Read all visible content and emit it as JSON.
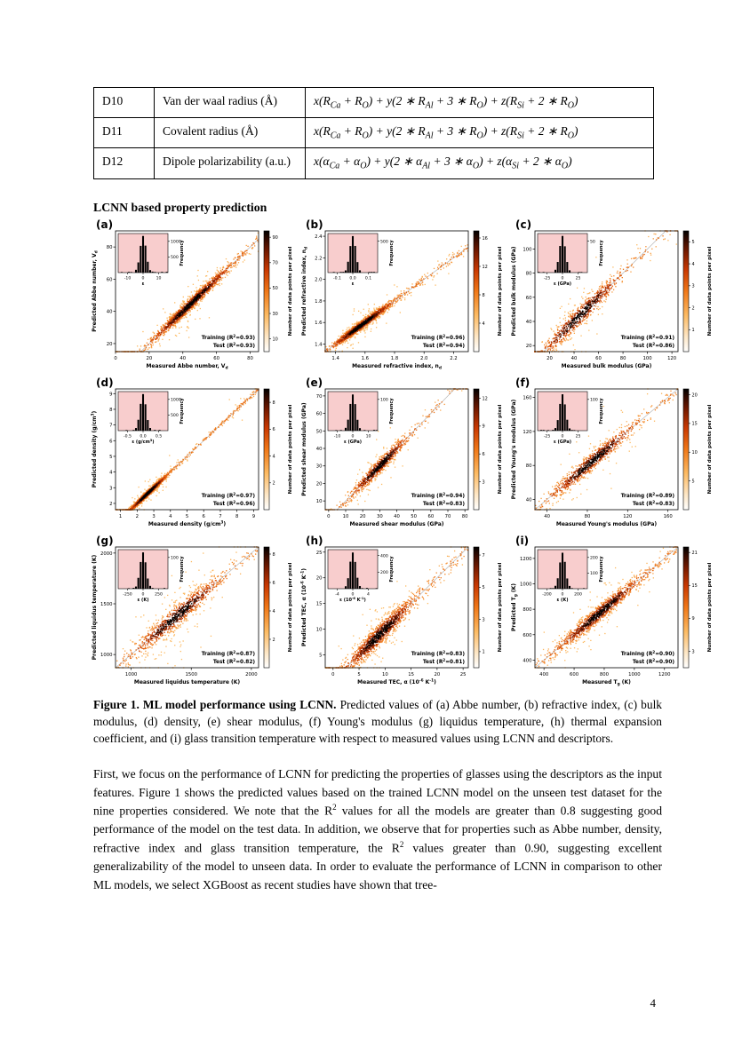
{
  "section_heading": "LCNN based property prediction",
  "table": {
    "rows": [
      {
        "id": "D10",
        "name": "Van der waal radius (Å)",
        "formula": "x(R_{Ca} + R_{O}) + y(2 ∗ R_{Al} + 3 ∗ R_{O}) + z(R_{Si} + 2 ∗ R_{O})"
      },
      {
        "id": "D11",
        "name": "Covalent radius (Å)",
        "formula": "x(R_{Ca} + R_{O}) + y(2 ∗ R_{Al} + 3 ∗ R_{O}) + z(R_{Si} + 2 ∗ R_{O})"
      },
      {
        "id": "D12",
        "name": "Dipole polarizability (a.u.)",
        "formula": "x(α_{Ca} + α_{O}) + y(2 ∗ α_{Al} + 3 ∗ α_{O}) + z(α_{Si} + 2 ∗ α_{O})"
      }
    ]
  },
  "colorbar_label": "Number of data points per pixel",
  "inset_ylabel": "Frequency",
  "chart_data": [
    {
      "panel": "(a)",
      "type": "scatter",
      "xlabel": "Measured Abbe number, V_{d}",
      "ylabel": "Predicted Abbe number, V_{d}",
      "xlim": [
        0,
        85
      ],
      "ylim": [
        15,
        90
      ],
      "xticks": [
        "0",
        "20",
        "40",
        "60",
        "80"
      ],
      "yticks": [
        "20",
        "40",
        "60",
        "80"
      ],
      "train_label": "Training (R^{2}=0.93)",
      "test_label": "Test (R^{2}=0.93)",
      "inset": {
        "xlabel": "ε",
        "xticks": [
          "-10",
          "0",
          "10"
        ],
        "yticks": [
          "500",
          "1000"
        ],
        "ymax": 1250
      },
      "cbar_ticks": [
        "10",
        "30",
        "50",
        "70",
        "90"
      ],
      "cbar_max": 95,
      "gen": {
        "center": 45,
        "width": 11,
        "noise": 2.0,
        "n": 1500
      }
    },
    {
      "panel": "(b)",
      "type": "scatter",
      "xlabel": "Measured refractive index, n_{d}",
      "ylabel": "Predicted refractive index, n_{d}",
      "xlim": [
        1.33,
        2.3
      ],
      "ylim": [
        1.33,
        2.45
      ],
      "xticks": [
        "1.4",
        "1.6",
        "1.8",
        "2.0",
        "2.2"
      ],
      "yticks": [
        "1.4",
        "1.6",
        "1.8",
        "2.0",
        "2.2",
        "2.4"
      ],
      "train_label": "Training (R^{2}=0.96)",
      "test_label": "Test (R^{2}=0.94)",
      "inset": {
        "xlabel": "ε",
        "xticks": [
          "-0.1",
          "0.0",
          "0.1"
        ],
        "yticks": [
          "500"
        ],
        "ymax": 620
      },
      "cbar_ticks": [
        "4",
        "8",
        "12",
        "16"
      ],
      "cbar_max": 17,
      "gen": {
        "center": 1.58,
        "width": 0.1,
        "noise": 0.022,
        "n": 1500
      }
    },
    {
      "panel": "(c)",
      "type": "scatter",
      "xlabel": "Measured bulk modulus (GPa)",
      "ylabel": "Predicted bulk modulus (GPa)",
      "xlim": [
        8,
        125
      ],
      "ylim": [
        15,
        115
      ],
      "xticks": [
        "20",
        "40",
        "60",
        "80",
        "100",
        "120"
      ],
      "yticks": [
        "20",
        "40",
        "60",
        "80",
        "100"
      ],
      "train_label": "Training (R^{2}=0.91)",
      "test_label": "Test (R^{2}=0.86)",
      "inset": {
        "xlabel": "ε (GPa)",
        "xticks": [
          "-25",
          "0",
          "25"
        ],
        "yticks": [
          "50"
        ],
        "ymax": 62
      },
      "cbar_ticks": [
        "1",
        "2",
        "3",
        "4",
        "5"
      ],
      "cbar_max": 5.5,
      "gen": {
        "center": 45,
        "width": 16,
        "noise": 4.5,
        "n": 900
      }
    },
    {
      "panel": "(d)",
      "type": "scatter",
      "xlabel": "Measured density (g/cm^{3})",
      "ylabel": "Predicted density (g/cm^{3})",
      "xlim": [
        0.7,
        9.3
      ],
      "ylim": [
        1.6,
        9.3
      ],
      "xticks": [
        "1",
        "2",
        "3",
        "4",
        "5",
        "6",
        "7",
        "8",
        "9"
      ],
      "yticks": [
        "2",
        "3",
        "4",
        "5",
        "6",
        "7",
        "8",
        "9"
      ],
      "train_label": "Training (R^{2}=0.97)",
      "test_label": "Test (R^{2}=0.96)",
      "inset": {
        "xlabel": "ε (g/cm^{3})",
        "xticks": [
          "-0.5",
          "0.0",
          "0.5"
        ],
        "yticks": [
          "500",
          "1000"
        ],
        "ymax": 1250
      },
      "cbar_ticks": [
        "2",
        "4",
        "6",
        "8"
      ],
      "cbar_max": 9,
      "gen": {
        "center": 2.65,
        "width": 0.55,
        "noise": 0.1,
        "n": 1600
      }
    },
    {
      "panel": "(e)",
      "type": "scatter",
      "xlabel": "Measured shear modulus (GPa)",
      "ylabel": "Predicted shear modulus (GPa)",
      "xlim": [
        -2,
        82
      ],
      "ylim": [
        5,
        74
      ],
      "xticks": [
        "0",
        "10",
        "20",
        "30",
        "40",
        "50",
        "60",
        "70",
        "80"
      ],
      "yticks": [
        "10",
        "20",
        "30",
        "40",
        "50",
        "60",
        "70"
      ],
      "train_label": "Training (R^{2}=0.94)",
      "test_label": "Test (R^{2}=0.83)",
      "inset": {
        "xlabel": "ε (GPa)",
        "xticks": [
          "-10",
          "0",
          "10"
        ],
        "yticks": [
          "100"
        ],
        "ymax": 125
      },
      "cbar_ticks": [
        "3",
        "6",
        "9",
        "12"
      ],
      "cbar_max": 13,
      "gen": {
        "center": 30,
        "width": 8,
        "noise": 2.2,
        "n": 900
      }
    },
    {
      "panel": "(f)",
      "type": "scatter",
      "xlabel": "Measured Young's modulus (GPa)",
      "ylabel": "Predicted Young's modulus (GPa)",
      "xlim": [
        28,
        170
      ],
      "ylim": [
        28,
        170
      ],
      "xticks": [
        "40",
        "80",
        "120",
        "160"
      ],
      "yticks": [
        "40",
        "80",
        "120",
        "160"
      ],
      "train_label": "Training (R^{2}=0.89)",
      "test_label": "Test (R^{2}=0.83)",
      "inset": {
        "xlabel": "ε (GPa)",
        "xticks": [
          "-25",
          "0",
          "25"
        ],
        "yticks": [
          "100"
        ],
        "ymax": 125
      },
      "cbar_ticks": [
        "5",
        "10",
        "15",
        "20"
      ],
      "cbar_max": 21,
      "gen": {
        "center": 85,
        "width": 20,
        "noise": 5.5,
        "n": 1000
      }
    },
    {
      "panel": "(g)",
      "type": "scatter",
      "xlabel": "Measured liquidus temperature (K)",
      "ylabel": "Predicted liquidus temperature (K)",
      "xlim": [
        870,
        2060
      ],
      "ylim": [
        870,
        2060
      ],
      "xticks": [
        "1000",
        "1500",
        "2000"
      ],
      "yticks": [
        "1000",
        "1500",
        "2000"
      ],
      "train_label": "Training (R^{2}=0.87)",
      "test_label": "Test (R^{2}=0.82)",
      "inset": {
        "xlabel": "ε (K)",
        "xticks": [
          "-250",
          "0",
          "250"
        ],
        "yticks": [
          "100"
        ],
        "ymax": 125
      },
      "cbar_ticks": [
        "2",
        "4",
        "6",
        "8"
      ],
      "cbar_max": 8.5,
      "gen": {
        "center": 1380,
        "width": 170,
        "noise": 55,
        "n": 1100,
        "out": 0.13
      }
    },
    {
      "panel": "(h)",
      "type": "scatter",
      "xlabel": "Measured TEC, α (10^{-6} K^{-1})",
      "ylabel": "Predicted TEC, α (10^{-6} K^{-1})",
      "xlim": [
        -1.5,
        26
      ],
      "ylim": [
        2.5,
        26
      ],
      "xticks": [
        "0",
        "5",
        "10",
        "15",
        "20",
        "25"
      ],
      "yticks": [
        "5",
        "10",
        "15",
        "20",
        "25"
      ],
      "train_label": "Training (R^{2}=0.83)",
      "test_label": "Test (R^{2}=0.81)",
      "inset": {
        "xlabel": "ε (10^{-6} K^{-1})",
        "xticks": [
          "-4",
          "0",
          "4"
        ],
        "yticks": [
          "200",
          "400"
        ],
        "ymax": 470
      },
      "cbar_ticks": [
        "1",
        "3",
        "5",
        "7"
      ],
      "cbar_max": 7.5,
      "gen": {
        "center": 9,
        "width": 3,
        "noise": 1.1,
        "n": 1400
      }
    },
    {
      "panel": "(i)",
      "type": "scatter",
      "xlabel": "Measured T_{g} (K)",
      "ylabel": "Predicted T_{g} (K)",
      "xlim": [
        340,
        1290
      ],
      "ylim": [
        340,
        1290
      ],
      "xticks": [
        "400",
        "600",
        "800",
        "1000",
        "1200"
      ],
      "yticks": [
        "400",
        "600",
        "800",
        "1000",
        "1200"
      ],
      "train_label": "Training (R^{2}=0.90)",
      "test_label": "Test (R^{2}=0.90)",
      "inset": {
        "xlabel": "ε (K)",
        "xticks": [
          "-200",
          "0",
          "200"
        ],
        "yticks": [
          "100",
          "200"
        ],
        "ymax": 250
      },
      "cbar_ticks": [
        "3",
        "9",
        "15",
        "21"
      ],
      "cbar_max": 22,
      "gen": {
        "center": 770,
        "width": 130,
        "noise": 33,
        "n": 1300
      }
    }
  ],
  "figure_caption": {
    "bold": "Figure 1. ML model performance using LCNN.",
    "text": " Predicted values of (a) Abbe number, (b) refractive index, (c) bulk modulus, (d) density, (e) shear modulus, (f) Young's modulus (g) liquidus temperature, (h) thermal expansion coefficient, and (i) glass transition temperature with respect to measured values using LCNN and descriptors."
  },
  "body_paragraph": "First, we focus on the performance of LCNN for predicting the properties of glasses using the descriptors as the input features. Figure 1 shows the predicted values based on the trained LCNN model on the unseen test dataset for the nine properties considered. We note that the R^{2} values for all the models are greater than 0.8 suggesting good performance of the model on the test data. In addition, we observe that for properties such as Abbe number, density, refractive index and glass transition temperature, the R^{2} values greater than 0.90, suggesting excellent generalizability of the model to unseen data. In order to evaluate the performance of LCNN in comparison to other ML models, we select XGBoost as recent studies have shown that tree-",
  "page_number": "4"
}
